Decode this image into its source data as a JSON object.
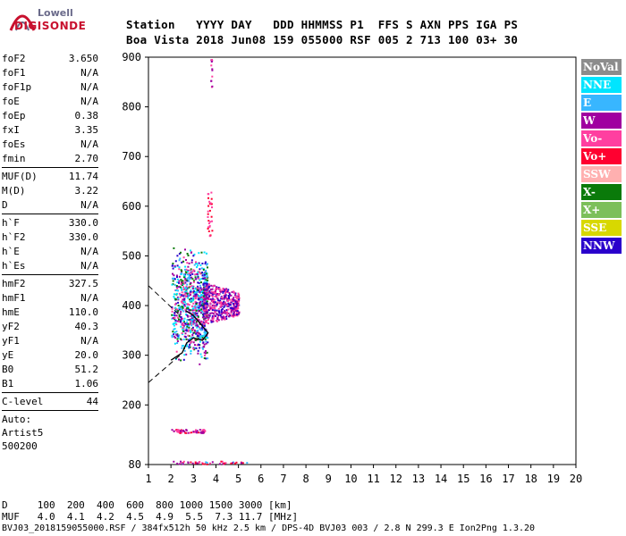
{
  "logo": {
    "line1": "Lowell",
    "line2": "DIGISONDE"
  },
  "header": {
    "line1": "Station   YYYY DAY   DDD HHMMSS P1  FFS S AXN PPS IGA PS",
    "line2": "Boa Vista 2018 Jun08 159 055000 RSF 005 2 713 100 03+ 30"
  },
  "params": {
    "group1": [
      {
        "k": "foF2",
        "v": "3.650"
      },
      {
        "k": "foF1",
        "v": "N/A"
      },
      {
        "k": "foF1p",
        "v": "N/A"
      },
      {
        "k": "foE",
        "v": "N/A"
      },
      {
        "k": "foEp",
        "v": "0.38"
      },
      {
        "k": "fxI",
        "v": "3.35"
      },
      {
        "k": "foEs",
        "v": "N/A"
      },
      {
        "k": "fmin",
        "v": "2.70"
      }
    ],
    "group2": [
      {
        "k": "MUF(D)",
        "v": "11.74"
      },
      {
        "k": "M(D)",
        "v": "3.22"
      },
      {
        "k": "D",
        "v": "N/A"
      }
    ],
    "group3": [
      {
        "k": "h`F",
        "v": "330.0"
      },
      {
        "k": "h`F2",
        "v": "330.0"
      },
      {
        "k": "h`E",
        "v": "N/A"
      },
      {
        "k": "h`Es",
        "v": "N/A"
      }
    ],
    "group4": [
      {
        "k": "hmF2",
        "v": "327.5"
      },
      {
        "k": "hmF1",
        "v": "N/A"
      },
      {
        "k": "hmE",
        "v": "110.0"
      },
      {
        "k": "yF2",
        "v": "40.3"
      },
      {
        "k": "yF1",
        "v": "N/A"
      },
      {
        "k": "yE",
        "v": "20.0"
      },
      {
        "k": "B0",
        "v": "51.2"
      },
      {
        "k": "B1",
        "v": "1.06"
      }
    ],
    "group5": [
      {
        "k": "C-level",
        "v": "44"
      }
    ],
    "autoscale": [
      "Auto:",
      "Artist5",
      "500200"
    ]
  },
  "legend": [
    {
      "label": "NoVal",
      "color": "#8c8c8c"
    },
    {
      "label": "NNE",
      "color": "#00e5ff"
    },
    {
      "label": "E",
      "color": "#38b6ff"
    },
    {
      "label": "W",
      "color": "#a000a0"
    },
    {
      "label": "Vo-",
      "color": "#ff3fa0"
    },
    {
      "label": "Vo+",
      "color": "#ff0030"
    },
    {
      "label": "SSW",
      "color": "#ffb0b0"
    },
    {
      "label": "X-",
      "color": "#0a7a0a"
    },
    {
      "label": "X+",
      "color": "#7cbf5a"
    },
    {
      "label": "SSE",
      "color": "#d8d800"
    },
    {
      "label": "NNW",
      "color": "#2a00cc"
    }
  ],
  "footer": {
    "line1": "D     100  200  400  600  800 1000 1500 3000 [km]",
    "line2": "MUF   4.0  4.1  4.2  4.5  4.9  5.5  7.3 11.7 [MHz]",
    "line3": "BVJ03_2018159055000.RSF / 384fx512h 50 kHz 2.5 km / DPS-4D BVJ03 003 / 2.8 N 299.3 E Ion2Png 1.3.20"
  },
  "chart_data": {
    "type": "scatter",
    "xlabel": "",
    "ylabel": "",
    "xlim": [
      1,
      20
    ],
    "ylim": [
      80,
      900
    ],
    "xticks": [
      1,
      2,
      3,
      4,
      5,
      6,
      7,
      8,
      9,
      10,
      11,
      12,
      13,
      14,
      15,
      16,
      17,
      18,
      19,
      20
    ],
    "yticks": [
      200,
      300,
      400,
      500,
      600,
      700,
      800,
      900
    ],
    "ytick_labels_extra": [
      80
    ],
    "clusters": [
      {
        "name": "F-trace",
        "x_range": [
          2.0,
          3.6
        ],
        "y_range": [
          290,
          520
        ],
        "colors": [
          "#00e5ff",
          "#38b6ff",
          "#a000a0",
          "#2a00cc",
          "#0a7a0a",
          "#ff3fa0"
        ]
      },
      {
        "name": "F-spread",
        "x_range": [
          3.4,
          5.0
        ],
        "y_range": [
          360,
          450
        ],
        "colors": [
          "#a000a0",
          "#2a00cc",
          "#ff3fa0"
        ]
      },
      {
        "name": "sporadic-high",
        "x_range": [
          3.6,
          3.8
        ],
        "y_range": [
          540,
          630
        ],
        "colors": [
          "#ff3fa0",
          "#ff0030"
        ]
      },
      {
        "name": "top-streak",
        "x_range": [
          3.75,
          3.8
        ],
        "y_range": [
          840,
          900
        ],
        "colors": [
          "#a000a0",
          "#ff3fa0"
        ]
      },
      {
        "name": "low-band-150",
        "x_range": [
          2.0,
          3.5
        ],
        "y_range": [
          145,
          152
        ],
        "colors": [
          "#a000a0",
          "#ff0030",
          "#ff3fa0"
        ]
      },
      {
        "name": "low-band-85",
        "x_range": [
          2.0,
          5.4
        ],
        "y_range": [
          82,
          88
        ],
        "colors": [
          "#a000a0",
          "#38b6ff",
          "#ff3fa0",
          "#ff0030"
        ]
      }
    ],
    "profile": [
      {
        "x": 2.0,
        "y": 290
      },
      {
        "x": 2.5,
        "y": 305
      },
      {
        "x": 2.7,
        "y": 325
      },
      {
        "x": 3.0,
        "y": 335
      },
      {
        "x": 3.4,
        "y": 330
      },
      {
        "x": 3.65,
        "y": 345
      },
      {
        "x": 3.0,
        "y": 380
      },
      {
        "x": 2.65,
        "y": 390
      }
    ],
    "dashed_lines": [
      [
        {
          "x": 1.0,
          "y": 440
        },
        {
          "x": 2.4,
          "y": 380
        }
      ],
      [
        {
          "x": 1.0,
          "y": 245
        },
        {
          "x": 2.4,
          "y": 300
        }
      ]
    ],
    "grid": false
  }
}
